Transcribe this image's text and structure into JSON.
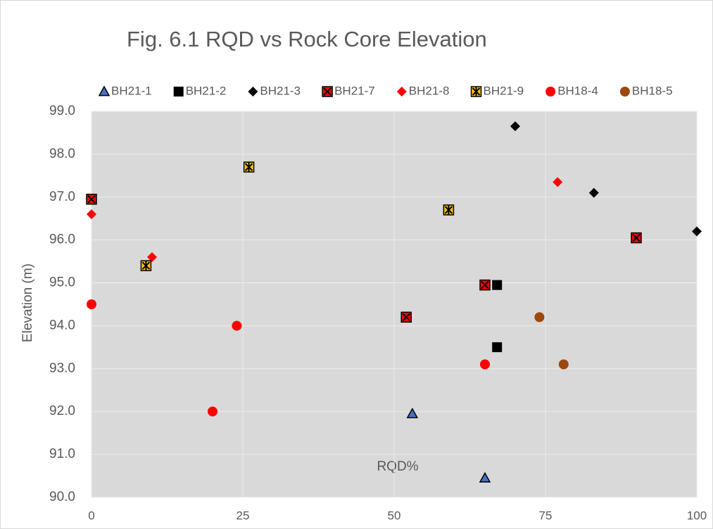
{
  "chart_data": {
    "type": "scatter",
    "title": "Fig. 6.1 RQD vs Rock Core Elevation",
    "x_label": "RQD%",
    "y_label": "Elevation (m)",
    "xlim": [
      0,
      100
    ],
    "xticks": [
      0,
      25,
      50,
      75,
      100
    ],
    "ylim": [
      90,
      99
    ],
    "yticks": [
      {
        "value": 90,
        "label": "90.0"
      },
      {
        "value": 91,
        "label": "91.0"
      },
      {
        "value": 92,
        "label": "92.0"
      },
      {
        "value": 93,
        "label": "93.0"
      },
      {
        "value": 94,
        "label": "94.0"
      },
      {
        "value": 95,
        "label": "95.0"
      },
      {
        "value": 96,
        "label": "96.0"
      },
      {
        "value": 97,
        "label": "97.0"
      },
      {
        "value": 98,
        "label": "98.0"
      },
      {
        "value": 99,
        "label": "99.0"
      }
    ],
    "grid": true,
    "legend": "top",
    "series": [
      {
        "name": "BH21-1",
        "marker": "triangle",
        "color": "#4472c4",
        "x": [
          53,
          65
        ],
        "values": [
          91.95,
          90.45
        ]
      },
      {
        "name": "BH21-2",
        "marker": "square",
        "color": "#000000",
        "x": [
          67,
          67
        ],
        "values": [
          94.95,
          93.5
        ]
      },
      {
        "name": "BH21-3",
        "marker": "diamond",
        "color": "#000000",
        "x": [
          70,
          83,
          100
        ],
        "values": [
          98.65,
          97.1,
          96.2
        ]
      },
      {
        "name": "BH21-7",
        "marker": "x-square",
        "color": "#ff0000",
        "x": [
          0,
          90,
          65,
          52
        ],
        "values": [
          96.95,
          96.05,
          94.95,
          94.2
        ]
      },
      {
        "name": "BH21-8",
        "marker": "diamond",
        "color": "#ff0000",
        "x": [
          0,
          10,
          77
        ],
        "values": [
          96.6,
          95.6,
          97.35
        ]
      },
      {
        "name": "BH21-9",
        "marker": "star-square",
        "color": "#ffc000",
        "x": [
          26,
          9,
          59
        ],
        "values": [
          97.7,
          95.4,
          96.7
        ]
      },
      {
        "name": "BH18-4",
        "marker": "circle",
        "color": "#ff0000",
        "x": [
          0,
          24,
          20,
          65
        ],
        "values": [
          94.5,
          94.0,
          92.0,
          93.1
        ]
      },
      {
        "name": "BH18-5",
        "marker": "circle",
        "color": "#9e480e",
        "x": [
          74,
          78
        ],
        "values": [
          94.2,
          93.1
        ]
      }
    ]
  }
}
